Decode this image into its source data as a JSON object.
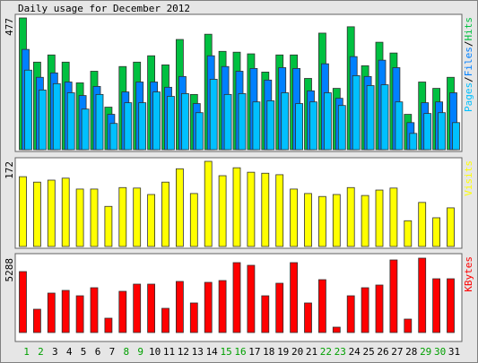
{
  "title": "Daily usage for December 2012",
  "legend_separator": "/",
  "chart_data": [
    {
      "type": "bar",
      "ylim": [
        0,
        477
      ],
      "yticks": [
        477
      ],
      "series": [
        {
          "name": "Hits",
          "color": "#00c040",
          "values": [
            477,
            317,
            343,
            317,
            242,
            284,
            154,
            301,
            317,
            340,
            307,
            399,
            200,
            418,
            356,
            353,
            347,
            281,
            343,
            343,
            258,
            422,
            222,
            445,
            304,
            389,
            350,
            128,
            245,
            222,
            262
          ]
        },
        {
          "name": "Files",
          "color": "#0080ff",
          "values": [
            363,
            262,
            278,
            245,
            196,
            229,
            128,
            209,
            245,
            245,
            226,
            265,
            167,
            340,
            301,
            284,
            294,
            252,
            297,
            294,
            213,
            311,
            186,
            337,
            265,
            324,
            297,
            98,
            170,
            173,
            206
          ]
        },
        {
          "name": "Pages",
          "color": "#00c0ff",
          "values": [
            288,
            216,
            239,
            206,
            147,
            200,
            95,
            170,
            170,
            209,
            193,
            203,
            134,
            255,
            200,
            203,
            173,
            177,
            206,
            167,
            173,
            206,
            160,
            268,
            232,
            235,
            173,
            59,
            131,
            134,
            98
          ]
        }
      ]
    },
    {
      "type": "bar",
      "ylim": [
        0,
        172
      ],
      "yticks": [
        172
      ],
      "series": [
        {
          "name": "Visits",
          "color": "#ffff00",
          "values": [
            141,
            130,
            134,
            138,
            116,
            116,
            81,
            119,
            118,
            105,
            130,
            157,
            107,
            172,
            143,
            159,
            150,
            148,
            145,
            116,
            107,
            101,
            105,
            119,
            103,
            114,
            118,
            52,
            89,
            58,
            78
          ]
        }
      ]
    },
    {
      "type": "bar",
      "ylim": [
        0,
        5288
      ],
      "yticks": [
        5288
      ],
      "categories": [
        "1",
        "2",
        "3",
        "4",
        "5",
        "6",
        "7",
        "8",
        "9",
        "10",
        "11",
        "12",
        "13",
        "14",
        "15",
        "16",
        "17",
        "18",
        "19",
        "20",
        "21",
        "22",
        "23",
        "24",
        "25",
        "26",
        "27",
        "28",
        "29",
        "30",
        "31"
      ],
      "label_colors": [
        "#00a000",
        "#00a000",
        "#000000",
        "#000000",
        "#000000",
        "#000000",
        "#000000",
        "#00a000",
        "#00a000",
        "#000000",
        "#000000",
        "#000000",
        "#000000",
        "#000000",
        "#00a000",
        "#00a000",
        "#000000",
        "#000000",
        "#000000",
        "#000000",
        "#000000",
        "#00a000",
        "#00a000",
        "#000000",
        "#000000",
        "#000000",
        "#000000",
        "#000000",
        "#00a000",
        "#00a000",
        "#000000"
      ],
      "series": [
        {
          "name": "KBytes",
          "color": "#ff0000",
          "values": [
            4332,
            1656,
            2803,
            2994,
            2612,
            3185,
            1019,
            2930,
            3440,
            3440,
            1720,
            3631,
            2102,
            3567,
            3695,
            4969,
            4778,
            2612,
            3504,
            4969,
            2102,
            3758,
            382,
            2612,
            3185,
            3376,
            5160,
            955,
            5288,
            3822,
            3822
          ]
        }
      ]
    }
  ]
}
